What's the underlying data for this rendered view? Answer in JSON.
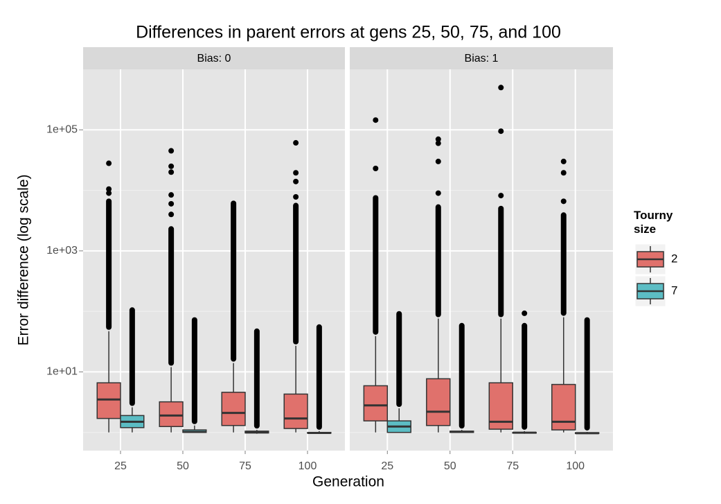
{
  "chart_data": {
    "type": "boxplot",
    "title": "Differences in parent errors at gens 25, 50, 75, and 100",
    "xlabel": "Generation",
    "ylabel": "Error difference (log scale)",
    "log_y": true,
    "ylim": [
      0.5,
      1000000
    ],
    "yticks": [
      {
        "value": 10,
        "label": "1e+01"
      },
      {
        "value": 1000,
        "label": "1e+03"
      },
      {
        "value": 100000,
        "label": "1e+05"
      }
    ],
    "y_minor_ticks": [
      1,
      100,
      10000
    ],
    "grid": true,
    "categories": [
      "25",
      "50",
      "75",
      "100"
    ],
    "legend_title": "Tourny\nsize",
    "legend_position": "right",
    "series": [
      {
        "name": "2",
        "color": "#E0716C"
      },
      {
        "name": "7",
        "color": "#5CBDC4"
      }
    ],
    "facets": [
      {
        "label": "Bias: 0",
        "boxes": [
          [
            {
              "low": 1.0,
              "q1": 1.7,
              "median": 3.5,
              "q3": 6.6,
              "high": 47,
              "outlier_top": 6600,
              "outliers": [
                9000,
                10500,
                28000
              ]
            },
            {
              "low": 1.0,
              "q1": 1.25,
              "median": 1.9,
              "q3": 3.2,
              "high": 12,
              "outlier_top": 2300,
              "outliers": [
                4000,
                6000,
                8400,
                20000,
                25000,
                45000
              ]
            },
            {
              "low": 1.0,
              "q1": 1.3,
              "median": 2.1,
              "q3": 4.6,
              "high": 14,
              "outlier_top": 6100,
              "outliers": []
            },
            {
              "low": 1.0,
              "q1": 1.16,
              "median": 1.7,
              "q3": 4.3,
              "high": 27,
              "outlier_top": 5600,
              "outliers": [
                7800,
                14000,
                19500,
                61000
              ]
            }
          ],
          [
            {
              "low": 1.0,
              "q1": 1.2,
              "median": 1.5,
              "q3": 1.9,
              "high": 2.6,
              "outlier_top": 105,
              "outliers": []
            },
            {
              "low": 1.0,
              "q1": 1.0,
              "median": 1.02,
              "q3": 1.1,
              "high": 1.3,
              "outlier_top": 72,
              "outliers": []
            },
            {
              "low": 0.95,
              "q1": 0.98,
              "median": 1.0,
              "q3": 1.05,
              "high": 1.1,
              "outlier_top": 47,
              "outliers": []
            },
            {
              "low": 0.95,
              "q1": 0.97,
              "median": 0.98,
              "q3": 1.0,
              "high": 1.05,
              "outlier_top": 55,
              "outliers": []
            }
          ]
        ]
      },
      {
        "label": "Bias: 1",
        "boxes": [
          [
            {
              "low": 1.0,
              "q1": 1.55,
              "median": 2.8,
              "q3": 5.9,
              "high": 39,
              "outlier_top": 7500,
              "outliers": [
                23000,
                145000
              ]
            },
            {
              "low": 1.0,
              "q1": 1.3,
              "median": 2.2,
              "q3": 7.7,
              "high": 76,
              "outlier_top": 5300,
              "outliers": [
                9000,
                30000,
                60000,
                70000
              ]
            },
            {
              "low": 1.0,
              "q1": 1.13,
              "median": 1.5,
              "q3": 6.6,
              "high": 76,
              "outlier_top": 5000,
              "outliers": [
                8200,
                95000,
                500000
              ]
            },
            {
              "low": 1.0,
              "q1": 1.1,
              "median": 1.5,
              "q3": 6.2,
              "high": 80,
              "outlier_top": 3900,
              "outliers": [
                6600,
                19500,
                30000
              ]
            }
          ],
          [
            {
              "low": 1.0,
              "q1": 1.0,
              "median": 1.25,
              "q3": 1.55,
              "high": 2.5,
              "outlier_top": 91,
              "outliers": []
            },
            {
              "low": 0.98,
              "q1": 1.0,
              "median": 1.02,
              "q3": 1.05,
              "high": 1.1,
              "outlier_top": 58,
              "outliers": []
            },
            {
              "low": 0.95,
              "q1": 0.98,
              "median": 0.99,
              "q3": 1.0,
              "high": 1.05,
              "outlier_top": 58,
              "outliers": [
                93
              ]
            },
            {
              "low": 0.94,
              "q1": 0.96,
              "median": 0.97,
              "q3": 0.99,
              "high": 1.02,
              "outlier_top": 72,
              "outliers": []
            }
          ]
        ]
      }
    ]
  }
}
